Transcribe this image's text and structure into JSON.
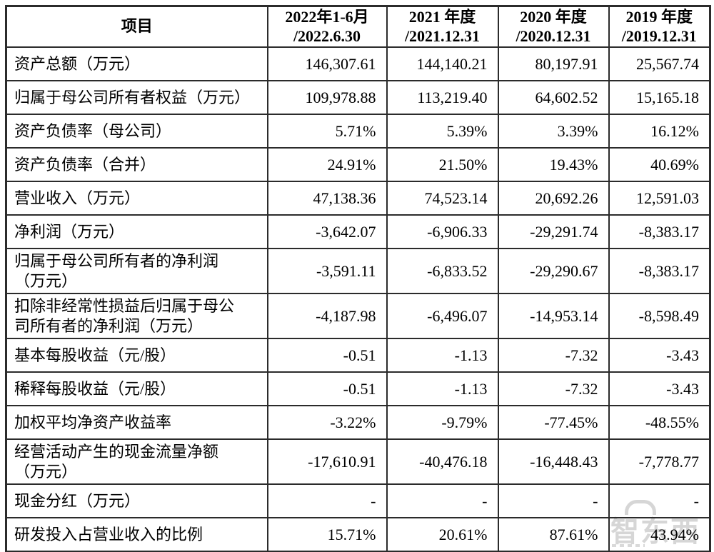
{
  "table": {
    "header": {
      "item_label": "项目",
      "periods": [
        {
          "line1": "2022年1-6月",
          "line2": "/2022.6.30"
        },
        {
          "line1": "2021 年度",
          "line2": "/2021.12.31"
        },
        {
          "line1": "2020 年度",
          "line2": "/2020.12.31"
        },
        {
          "line1": "2019 年度",
          "line2": "/2019.12.31"
        }
      ]
    },
    "rows": [
      {
        "label": "资产总额（万元）",
        "values": [
          "146,307.61",
          "144,140.21",
          "80,197.91",
          "25,567.74"
        ]
      },
      {
        "label": "归属于母公司所有者权益（万元）",
        "values": [
          "109,978.88",
          "113,219.40",
          "64,602.52",
          "15,165.18"
        ]
      },
      {
        "label": "资产负债率（母公司）",
        "values": [
          "5.71%",
          "5.39%",
          "3.39%",
          "16.12%"
        ]
      },
      {
        "label": "资产负债率（合并）",
        "values": [
          "24.91%",
          "21.50%",
          "19.43%",
          "40.69%"
        ]
      },
      {
        "label": "营业收入（万元）",
        "values": [
          "47,138.36",
          "74,523.14",
          "20,692.26",
          "12,591.03"
        ]
      },
      {
        "label": "净利润（万元）",
        "values": [
          "-3,642.07",
          "-6,906.33",
          "-29,291.74",
          "-8,383.17"
        ]
      },
      {
        "label": "归属于母公司所有者的净利润\n（万元）",
        "values": [
          "-3,591.11",
          "-6,833.52",
          "-29,290.67",
          "-8,383.17"
        ]
      },
      {
        "label": "扣除非经常性损益后归属于母公\n司所有者的净利润（万元）",
        "values": [
          "-4,187.98",
          "-6,496.07",
          "-14,953.14",
          "-8,598.49"
        ]
      },
      {
        "label": "基本每股收益（元/股）",
        "values": [
          "-0.51",
          "-1.13",
          "-7.32",
          "-3.43"
        ]
      },
      {
        "label": "稀释每股收益（元/股）",
        "values": [
          "-0.51",
          "-1.13",
          "-7.32",
          "-3.43"
        ]
      },
      {
        "label": "加权平均净资产收益率",
        "values": [
          "-3.22%",
          "-9.79%",
          "-77.45%",
          "-48.55%"
        ]
      },
      {
        "label": "经营活动产生的现金流量净额\n（万元）",
        "values": [
          "-17,610.91",
          "-40,476.18",
          "-16,448.43",
          "-7,778.77"
        ]
      },
      {
        "label": "现金分红（万元）",
        "values": [
          "-",
          "-",
          "-",
          "-"
        ]
      },
      {
        "label": "研发投入占营业收入的比例",
        "values": [
          "15.71%",
          "20.61%",
          "87.61%",
          "43.94%"
        ]
      }
    ]
  },
  "watermark": {
    "text": "智东西"
  },
  "colors": {
    "border": "#2b2b2b",
    "text": "#000000",
    "watermark": "#d6d6d6"
  }
}
